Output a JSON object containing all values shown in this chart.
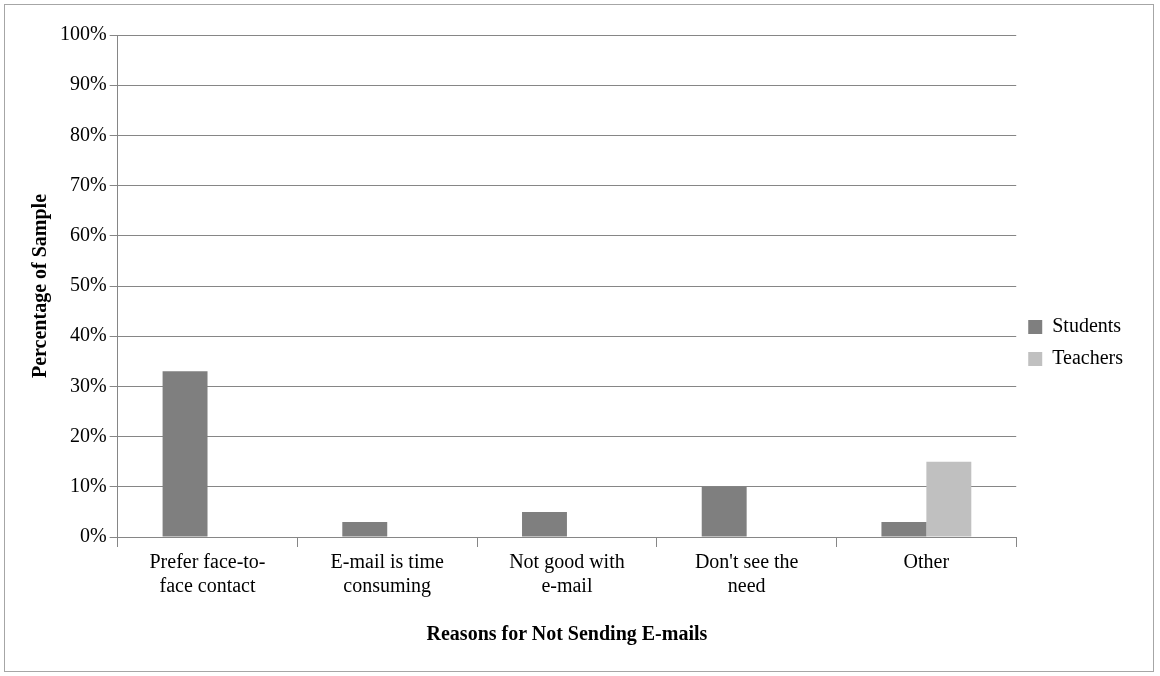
{
  "chart_data": {
    "type": "bar",
    "xlabel": "Reasons for Not Sending E-mails",
    "ylabel": "Percentage of Sample",
    "categories": [
      "Prefer face-to-face contact",
      "E-mail is time consuming",
      "Not good with e-mail",
      "Don't see the need",
      "Other"
    ],
    "series": [
      {
        "name": "Students",
        "color": "#7f7f7f",
        "values": [
          33,
          3,
          5,
          10,
          3
        ]
      },
      {
        "name": "Teachers",
        "color": "#c0c0c0",
        "values": [
          0,
          0,
          0,
          0,
          15
        ]
      }
    ],
    "ylim": [
      0,
      100
    ],
    "yticks": [
      {
        "value": 0,
        "label": "0%"
      },
      {
        "value": 10,
        "label": "10%"
      },
      {
        "value": 20,
        "label": "20%"
      },
      {
        "value": 30,
        "label": "30%"
      },
      {
        "value": 40,
        "label": "40%"
      },
      {
        "value": 50,
        "label": "50%"
      },
      {
        "value": 60,
        "label": "60%"
      },
      {
        "value": 70,
        "label": "70%"
      },
      {
        "value": 80,
        "label": "80%"
      },
      {
        "value": 90,
        "label": "90%"
      },
      {
        "value": 100,
        "label": "100%"
      }
    ],
    "grid": "y",
    "legend": "right"
  }
}
